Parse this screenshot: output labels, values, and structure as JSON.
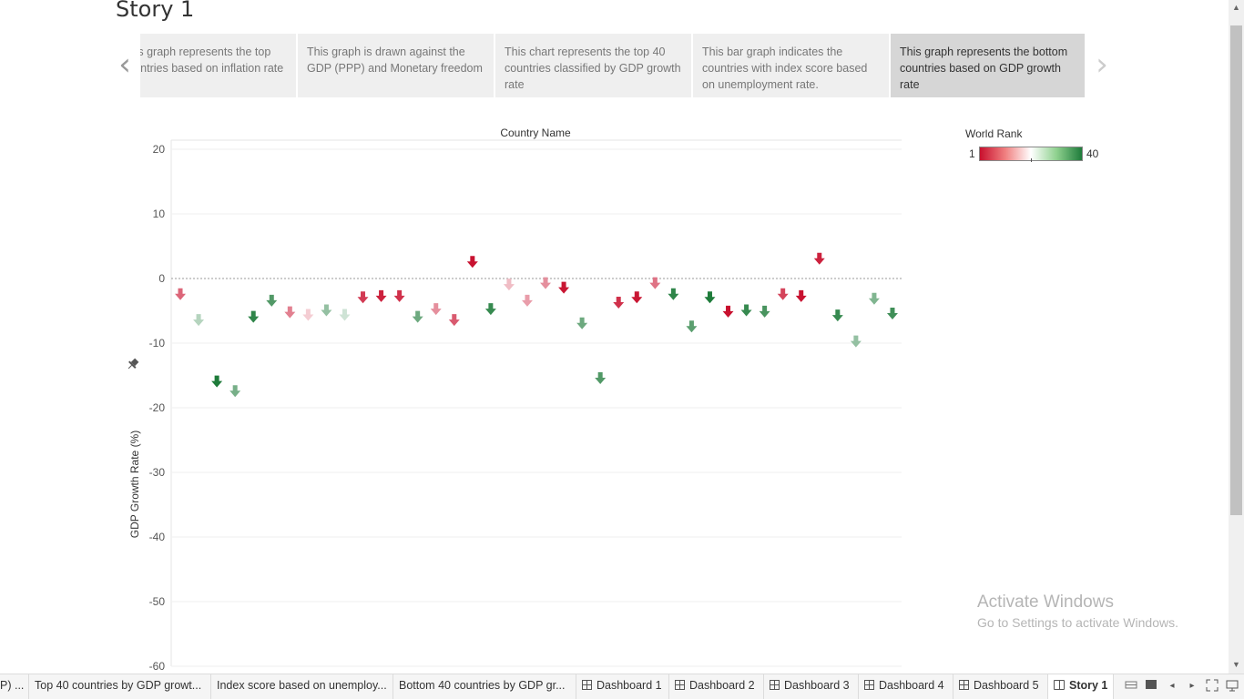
{
  "story": {
    "title": "Story 1"
  },
  "navigator": {
    "prev_icon": "chevron-left-icon",
    "next_icon": "chevron-right-icon",
    "points": [
      {
        "text": "This graph represents the top countries based on inflation rate"
      },
      {
        "text": "This graph is drawn against the GDP (PPP) and Monetary freedom"
      },
      {
        "text": "This chart represents the top 40 countries classified by GDP growth rate"
      },
      {
        "text": "This bar graph indicates the countries with index score based on unemployment rate."
      },
      {
        "text": "This graph represents the bottom countries based on GDP growth rate"
      }
    ],
    "active_index": 4
  },
  "chart_data": {
    "type": "scatter",
    "mark": "arrow-down-shape",
    "title": "Country Name",
    "ylabel": "GDP Growth Rate (%)",
    "ylim": [
      -60,
      20
    ],
    "yticks": [
      20,
      10,
      0,
      -10,
      -20,
      -30,
      -40,
      -50,
      -60
    ],
    "reference_line": 0,
    "grid": true,
    "color_field": "World Rank",
    "color_range": [
      1,
      40
    ],
    "colors": {
      "low": "#c8102e",
      "mid": "#ffffff",
      "high": "#1e7b3a"
    },
    "points": [
      {
        "y": -2.5,
        "rank": 12
      },
      {
        "y": -6.5,
        "rank": 24
      },
      {
        "y": -16.0,
        "rank": 40
      },
      {
        "y": -17.5,
        "rank": 30
      },
      {
        "y": -6.0,
        "rank": 38
      },
      {
        "y": -3.5,
        "rank": 34
      },
      {
        "y": -5.3,
        "rank": 14
      },
      {
        "y": -5.7,
        "rank": 19
      },
      {
        "y": -5.0,
        "rank": 27
      },
      {
        "y": -5.7,
        "rank": 22
      },
      {
        "y": -3.0,
        "rank": 8
      },
      {
        "y": -2.8,
        "rank": 5
      },
      {
        "y": -2.8,
        "rank": 7
      },
      {
        "y": -6.0,
        "rank": 31
      },
      {
        "y": -4.8,
        "rank": 15
      },
      {
        "y": -6.5,
        "rank": 11
      },
      {
        "y": 2.5,
        "rank": 2
      },
      {
        "y": -4.8,
        "rank": 37
      },
      {
        "y": -1.0,
        "rank": 18
      },
      {
        "y": -3.5,
        "rank": 16
      },
      {
        "y": -0.8,
        "rank": 15
      },
      {
        "y": -1.5,
        "rank": 3
      },
      {
        "y": -7.0,
        "rank": 31
      },
      {
        "y": -15.5,
        "rank": 34
      },
      {
        "y": -3.8,
        "rank": 7
      },
      {
        "y": -3.0,
        "rank": 3
      },
      {
        "y": -0.8,
        "rank": 13
      },
      {
        "y": -2.5,
        "rank": 38
      },
      {
        "y": -7.5,
        "rank": 33
      },
      {
        "y": -3.0,
        "rank": 40
      },
      {
        "y": -5.2,
        "rank": 1
      },
      {
        "y": -5.0,
        "rank": 37
      },
      {
        "y": -5.2,
        "rank": 35
      },
      {
        "y": -2.5,
        "rank": 9
      },
      {
        "y": -2.8,
        "rank": 2
      },
      {
        "y": 3.0,
        "rank": 5
      },
      {
        "y": -5.8,
        "rank": 37
      },
      {
        "y": -9.8,
        "rank": 27
      },
      {
        "y": -3.2,
        "rank": 29
      },
      {
        "y": -5.5,
        "rank": 36
      }
    ]
  },
  "legend": {
    "title": "World Rank",
    "min_label": "1",
    "max_label": "40"
  },
  "watermark": {
    "line1": "Activate Windows",
    "line2": "Go to Settings to activate Windows."
  },
  "tabs": [
    {
      "label": "P) ...",
      "icon": ""
    },
    {
      "label": "Top 40 countries by GDP growt...",
      "icon": ""
    },
    {
      "label": "Index score based on unemploy...",
      "icon": ""
    },
    {
      "label": "Bottom 40 countries by GDP gr...",
      "icon": ""
    },
    {
      "label": "Dashboard 1",
      "icon": "dashboard-icon"
    },
    {
      "label": "Dashboard 2",
      "icon": "dashboard-icon"
    },
    {
      "label": "Dashboard 3",
      "icon": "dashboard-icon"
    },
    {
      "label": "Dashboard 4",
      "icon": "dashboard-icon"
    },
    {
      "label": "Dashboard 5",
      "icon": "dashboard-icon"
    },
    {
      "label": "Story 1",
      "icon": "story-icon"
    }
  ],
  "active_tab_index": 9,
  "controls": [
    "filmstrip-view-icon",
    "tabs-view-icon",
    "prev-sheet-icon",
    "next-sheet-icon",
    "fullscreen-icon",
    "presentation-icon"
  ],
  "pin_icon": "pin-icon"
}
